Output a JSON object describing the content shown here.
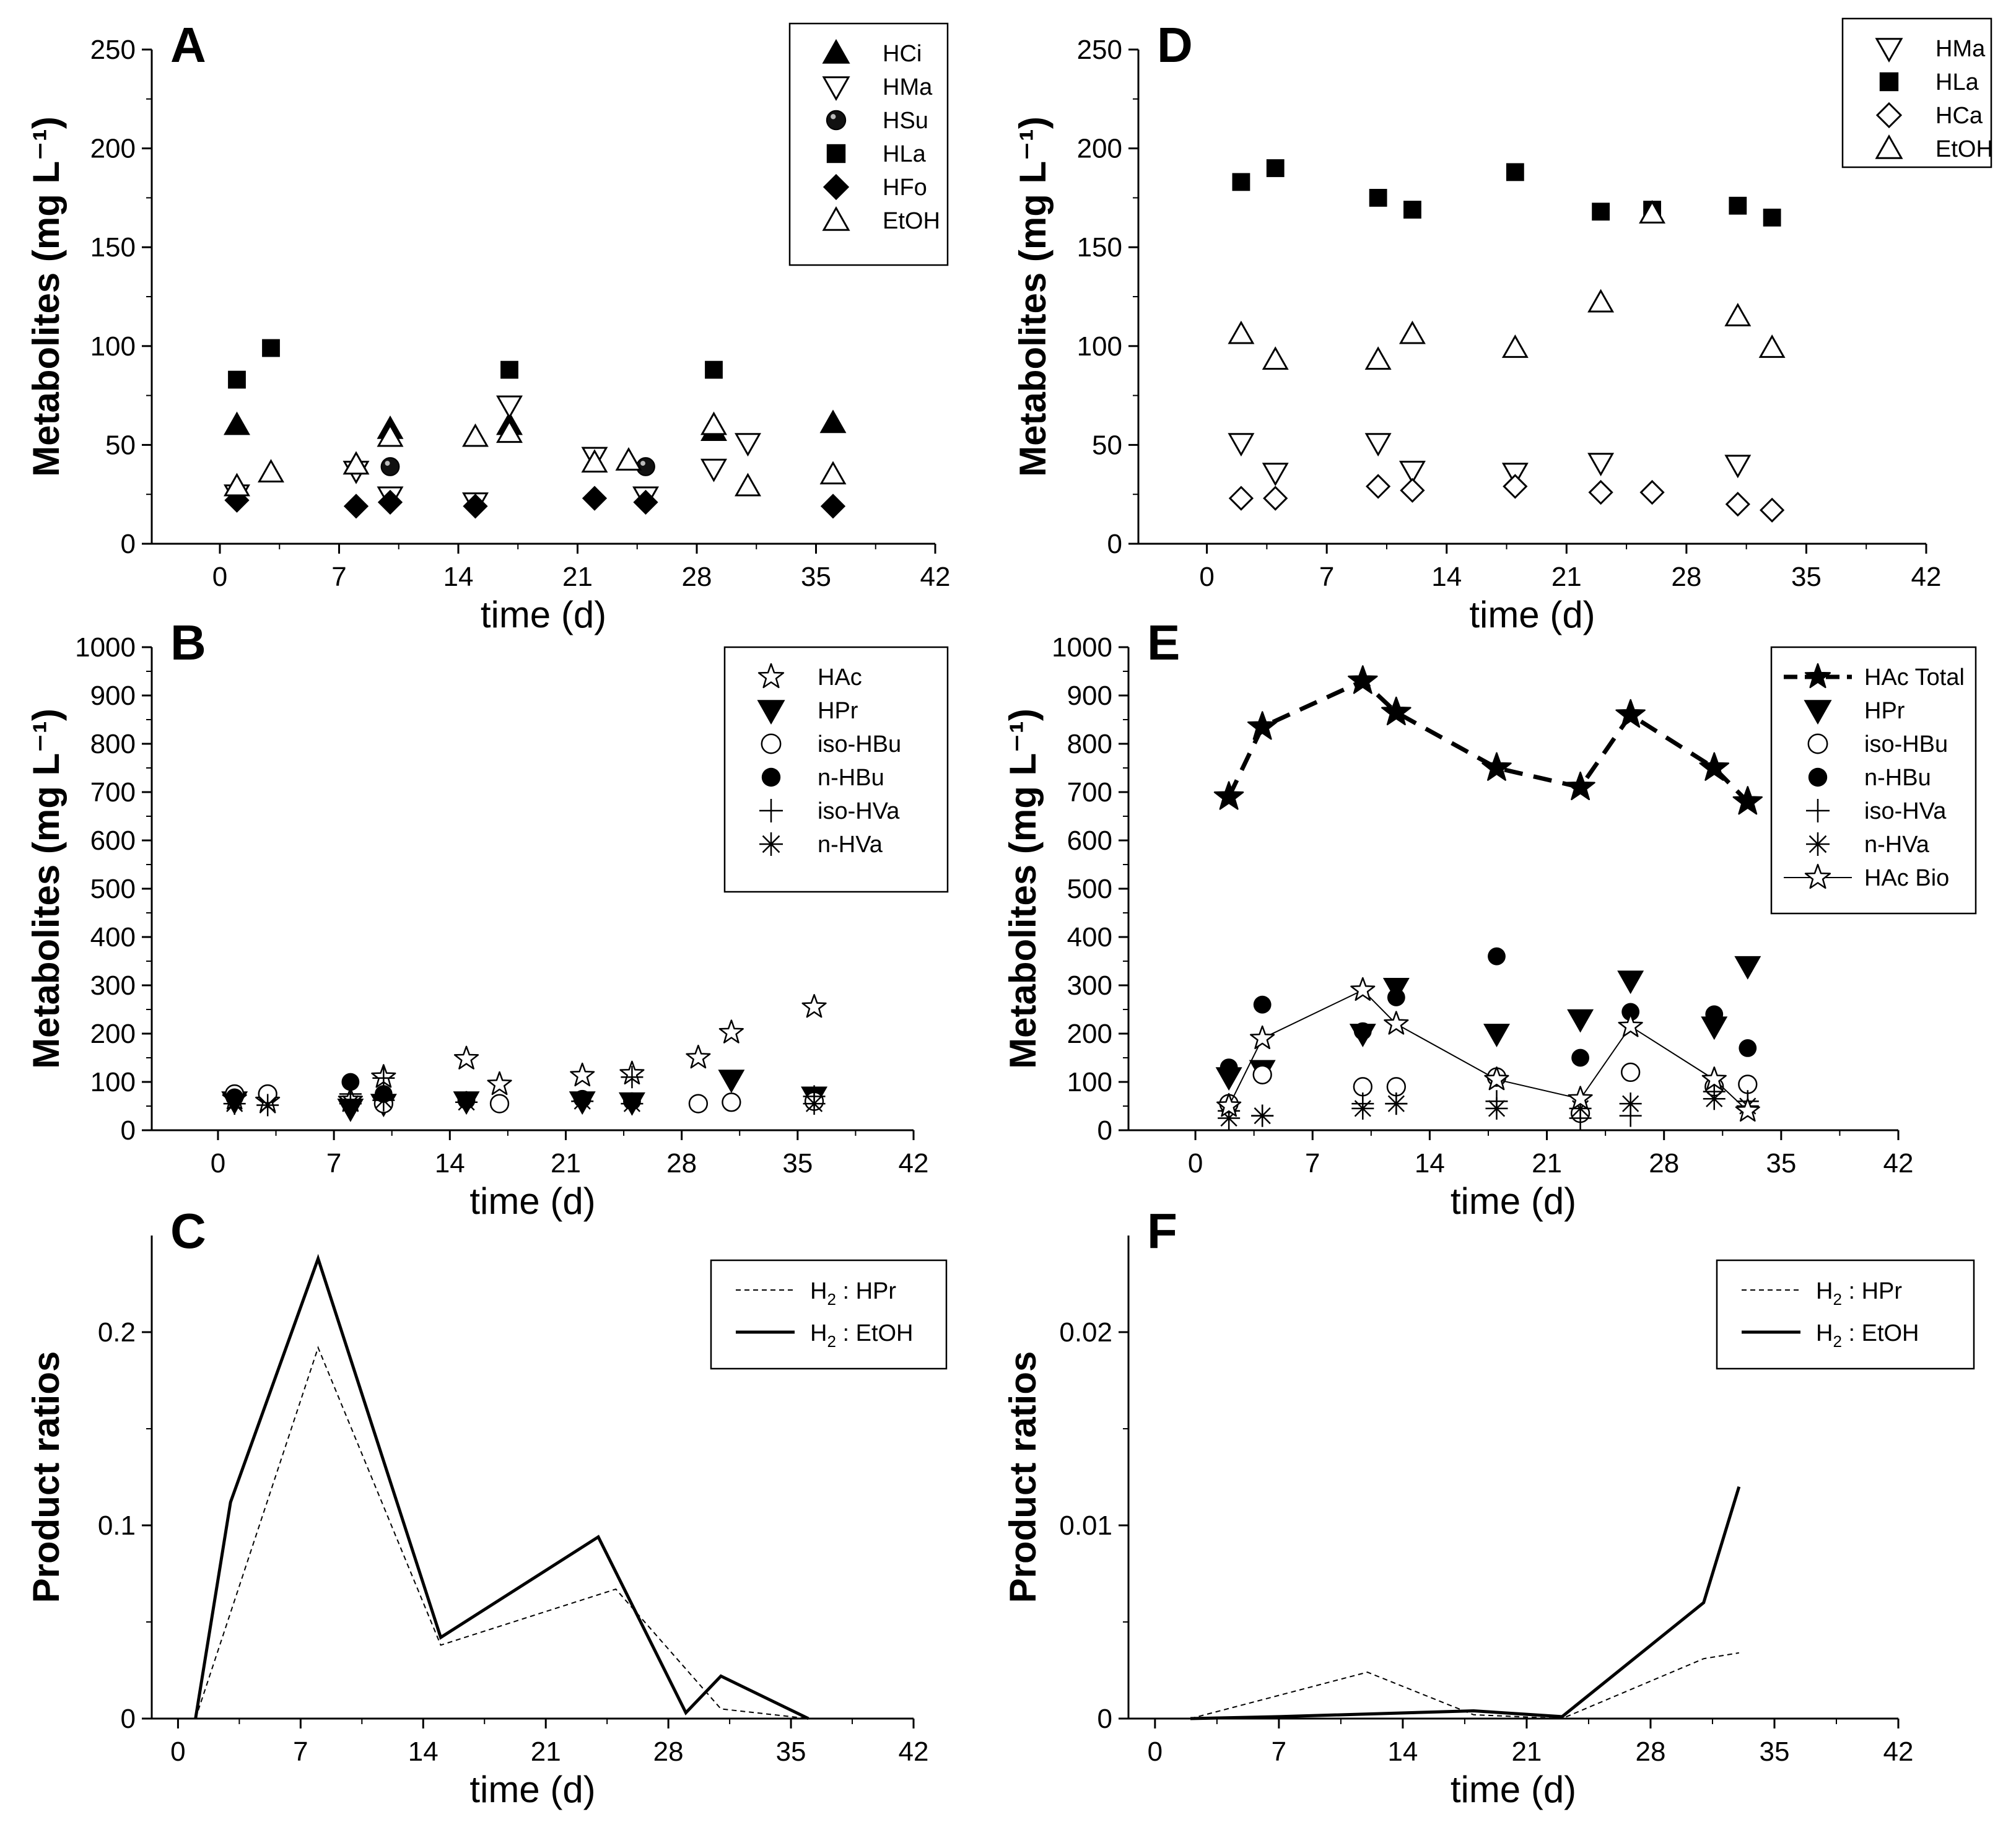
{
  "figure": {
    "xticks": [
      "0",
      "7",
      "14",
      "21",
      "28",
      "35",
      "42"
    ]
  },
  "chart_data": [
    {
      "id": "A",
      "type": "scatter",
      "letter": "A",
      "xlabel": "time (d)",
      "ylabel": "Metabolites (mg L⁻¹)",
      "xlim": [
        -4,
        42
      ],
      "ylim": [
        0,
        250
      ],
      "yticks": [
        "0",
        "50",
        "100",
        "150",
        "200",
        "250"
      ],
      "legend": "top-right",
      "series": [
        {
          "name": "HCi",
          "marker": "tri-up-filled",
          "x": [
            1,
            10,
            17,
            29,
            36
          ],
          "y": [
            60,
            58,
            60,
            57,
            61
          ]
        },
        {
          "name": "HMa",
          "marker": "tri-down-open",
          "x": [
            1,
            8,
            10,
            15,
            17,
            22,
            25,
            29,
            31
          ],
          "y": [
            25,
            37,
            24,
            21,
            70,
            44,
            24,
            38,
            51
          ]
        },
        {
          "name": "HSu",
          "marker": "ball",
          "x": [
            10,
            25
          ],
          "y": [
            39,
            39
          ]
        },
        {
          "name": "HLa",
          "marker": "square-filled",
          "x": [
            1,
            3,
            17,
            29
          ],
          "y": [
            83,
            99,
            88,
            88
          ]
        },
        {
          "name": "HFo",
          "marker": "diamond-filled",
          "x": [
            1,
            8,
            10,
            15,
            22,
            25,
            36
          ],
          "y": [
            22,
            19,
            21,
            19,
            23,
            21,
            19
          ]
        },
        {
          "name": "EtOH",
          "marker": "tri-up-open",
          "x": [
            1,
            3,
            8,
            10,
            15,
            17,
            22,
            24,
            29,
            31,
            36
          ],
          "y": [
            29,
            36,
            40,
            54,
            54,
            56,
            41,
            42,
            60,
            29,
            35
          ]
        }
      ]
    },
    {
      "id": "B",
      "type": "scatter",
      "letter": "B",
      "xlabel": "time (d)",
      "ylabel": "Metabolites (mg L⁻¹)",
      "xlim": [
        -4,
        42
      ],
      "ylim": [
        0,
        1000
      ],
      "yticks": [
        "0",
        "100",
        "200",
        "300",
        "400",
        "500",
        "600",
        "700",
        "800",
        "900",
        "1000"
      ],
      "legend": "top-right",
      "series": [
        {
          "name": "HAc",
          "marker": "star-open",
          "x": [
            1,
            3,
            8,
            10,
            15,
            17,
            22,
            25,
            29,
            31,
            36
          ],
          "y": [
            65,
            60,
            62,
            110,
            148,
            95,
            113,
            117,
            150,
            202,
            255
          ]
        },
        {
          "name": "HPr",
          "marker": "tri-down-filled",
          "x": [
            1,
            8,
            10,
            15,
            22,
            25,
            31,
            36
          ],
          "y": [
            60,
            45,
            55,
            60,
            60,
            58,
            105,
            70
          ]
        },
        {
          "name": "iso-HBu",
          "marker": "circle-open",
          "x": [
            1,
            3,
            10,
            17,
            29,
            31,
            36
          ],
          "y": [
            75,
            75,
            55,
            55,
            55,
            58,
            60
          ]
        },
        {
          "name": "n-HBu",
          "marker": "circle-filled",
          "x": [
            1,
            8,
            10,
            15,
            22,
            25
          ],
          "y": [
            68,
            100,
            75,
            62,
            65,
            60
          ]
        },
        {
          "name": "iso-HVa",
          "marker": "plus",
          "x": [
            8,
            10,
            25,
            36
          ],
          "y": [
            75,
            108,
            110,
            70
          ]
        },
        {
          "name": "n-HVa",
          "marker": "asterisk",
          "x": [
            1,
            3,
            8,
            10,
            15,
            22,
            25,
            36
          ],
          "y": [
            55,
            52,
            55,
            62,
            58,
            60,
            55,
            55
          ]
        }
      ]
    },
    {
      "id": "C",
      "type": "line",
      "letter": "C",
      "xlabel": "time (d)",
      "ylabel": "Product ratios",
      "xlim": [
        -1.5,
        42
      ],
      "ylim": [
        0,
        0.25
      ],
      "yticks": [
        "0",
        "0.1",
        "0.2"
      ],
      "legend": "top-right",
      "series": [
        {
          "name": "H",
          "name_sub": "2",
          "name_rest": " : HPr",
          "style": "dashed",
          "x": [
            1,
            8,
            15,
            25,
            31,
            36
          ],
          "y": [
            0,
            0.192,
            0.038,
            0.067,
            0.005,
            0
          ]
        },
        {
          "name": "H",
          "name_sub": "2",
          "name_rest": " : EtOH",
          "style": "solid",
          "x": [
            1,
            3,
            8,
            15,
            24,
            29,
            31,
            36
          ],
          "y": [
            0,
            0.112,
            0.238,
            0.042,
            0.094,
            0.003,
            0.022,
            0
          ]
        }
      ]
    },
    {
      "id": "D",
      "type": "scatter",
      "letter": "D",
      "xlabel": "time (d)",
      "ylabel": "Metabolites (mg L⁻¹)",
      "xlim": [
        -4,
        42
      ],
      "ylim": [
        0,
        250
      ],
      "yticks": [
        "0",
        "50",
        "100",
        "150",
        "200",
        "250"
      ],
      "legend": "top-right",
      "series": [
        {
          "name": "HMa",
          "marker": "tri-down-open",
          "x": [
            2,
            4,
            10,
            12,
            18,
            23,
            31
          ],
          "y": [
            51,
            36,
            51,
            37,
            36,
            41,
            40
          ]
        },
        {
          "name": "HLa",
          "marker": "square-filled",
          "x": [
            2,
            4,
            10,
            12,
            18,
            23,
            26,
            31,
            33
          ],
          "y": [
            183,
            190,
            175,
            169,
            188,
            168,
            169,
            171,
            165
          ]
        },
        {
          "name": "HCa",
          "marker": "diamond-open",
          "x": [
            2,
            4,
            10,
            12,
            18,
            23,
            26,
            31,
            33
          ],
          "y": [
            23,
            23,
            29,
            27,
            29,
            26,
            26,
            20,
            17
          ]
        },
        {
          "name": "EtOH",
          "marker": "tri-up-open",
          "x": [
            2,
            4,
            10,
            12,
            18,
            23,
            26,
            31,
            33
          ],
          "y": [
            106,
            93,
            93,
            106,
            99,
            122,
            167,
            115,
            99
          ]
        }
      ]
    },
    {
      "id": "E",
      "type": "scatter",
      "letter": "E",
      "xlabel": "time (d)",
      "ylabel": "Metabolites (mg L⁻¹)",
      "xlim": [
        -4,
        42
      ],
      "ylim": [
        0,
        1000
      ],
      "yticks": [
        "0",
        "100",
        "200",
        "300",
        "400",
        "500",
        "600",
        "700",
        "800",
        "900",
        "1000"
      ],
      "legend": "top-right",
      "series": [
        {
          "name": "HAc Total",
          "marker": "star-filled",
          "line": "dashed",
          "x": [
            2,
            4,
            10,
            12,
            18,
            23,
            26,
            31,
            33
          ],
          "y": [
            690,
            835,
            930,
            865,
            750,
            710,
            860,
            750,
            680
          ]
        },
        {
          "name": "HPr",
          "marker": "tri-down-filled",
          "x": [
            2,
            4,
            10,
            12,
            18,
            23,
            26,
            31,
            33
          ],
          "y": [
            110,
            125,
            200,
            295,
            200,
            230,
            310,
            215,
            340
          ]
        },
        {
          "name": "iso-HBu",
          "marker": "circle-open",
          "x": [
            2,
            4,
            10,
            12,
            18,
            23,
            26,
            31,
            33
          ],
          "y": [
            55,
            115,
            90,
            90,
            110,
            35,
            120,
            90,
            95
          ]
        },
        {
          "name": "n-HBu",
          "marker": "circle-filled",
          "x": [
            2,
            4,
            10,
            12,
            18,
            23,
            26,
            31,
            33
          ],
          "y": [
            130,
            260,
            205,
            275,
            360,
            150,
            245,
            240,
            170
          ]
        },
        {
          "name": "iso-HVa",
          "marker": "plus",
          "x": [
            2,
            4,
            10,
            12,
            18,
            23,
            26,
            31,
            33
          ],
          "y": [
            40,
            30,
            55,
            55,
            60,
            25,
            30,
            80,
            60
          ]
        },
        {
          "name": "n-HVa",
          "marker": "asterisk",
          "x": [
            2,
            4,
            10,
            12,
            18,
            23,
            26,
            31,
            33
          ],
          "y": [
            25,
            30,
            45,
            55,
            45,
            45,
            55,
            65,
            50
          ]
        },
        {
          "name": "HAc Bio",
          "marker": "star-open",
          "line": "solid",
          "x": [
            2,
            4,
            10,
            12,
            18,
            23,
            26,
            31,
            33
          ],
          "y": [
            50,
            190,
            290,
            220,
            105,
            65,
            215,
            105,
            40
          ]
        }
      ]
    },
    {
      "id": "F",
      "type": "line",
      "letter": "F",
      "xlabel": "time (d)",
      "ylabel": "Product ratios",
      "xlim": [
        -1.5,
        42
      ],
      "ylim": [
        0,
        0.025
      ],
      "yticks": [
        "0",
        "0.01",
        "0.02"
      ],
      "legend": "top-right",
      "series": [
        {
          "name": "H",
          "name_sub": "2",
          "name_rest": " : HPr",
          "style": "dashed",
          "x": [
            2,
            12,
            18,
            23,
            31,
            33
          ],
          "y": [
            0,
            0.0024,
            0.0002,
            0,
            0.0031,
            0.0034
          ]
        },
        {
          "name": "H",
          "name_sub": "2",
          "name_rest": " : EtOH",
          "style": "solid",
          "x": [
            2,
            7,
            18,
            23,
            31,
            33
          ],
          "y": [
            0,
            0.0001,
            0.0004,
            0.0001,
            0.006,
            0.012
          ]
        }
      ]
    }
  ]
}
